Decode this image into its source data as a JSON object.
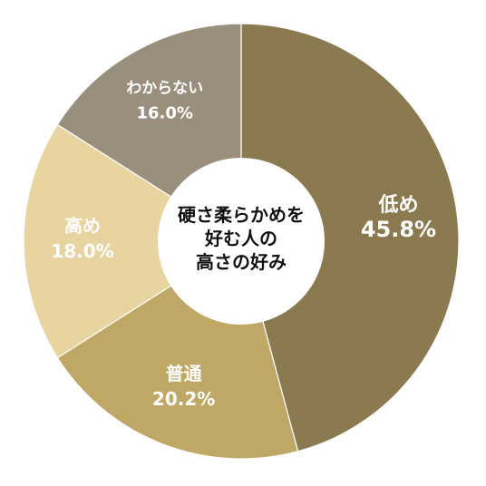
{
  "chart_data": {
    "type": "pie",
    "title": "硬さ柔らかめを好む人の高さの好み",
    "title_lines": [
      "硬さ柔らかめを",
      "好む人の",
      "高さの好み"
    ],
    "categories": [
      "低め",
      "普通",
      "高め",
      "わからない"
    ],
    "values": [
      45.8,
      20.2,
      18.0,
      16.0
    ],
    "value_labels": [
      "45.8%",
      "20.2%",
      "18.0%",
      "16.0%"
    ],
    "colors": [
      "#8b7a4f",
      "#bfa766",
      "#e8d4a0",
      "#9a8f7d"
    ],
    "start_angle_deg": 0,
    "direction": "clockwise",
    "donut": true,
    "legend": "none"
  }
}
